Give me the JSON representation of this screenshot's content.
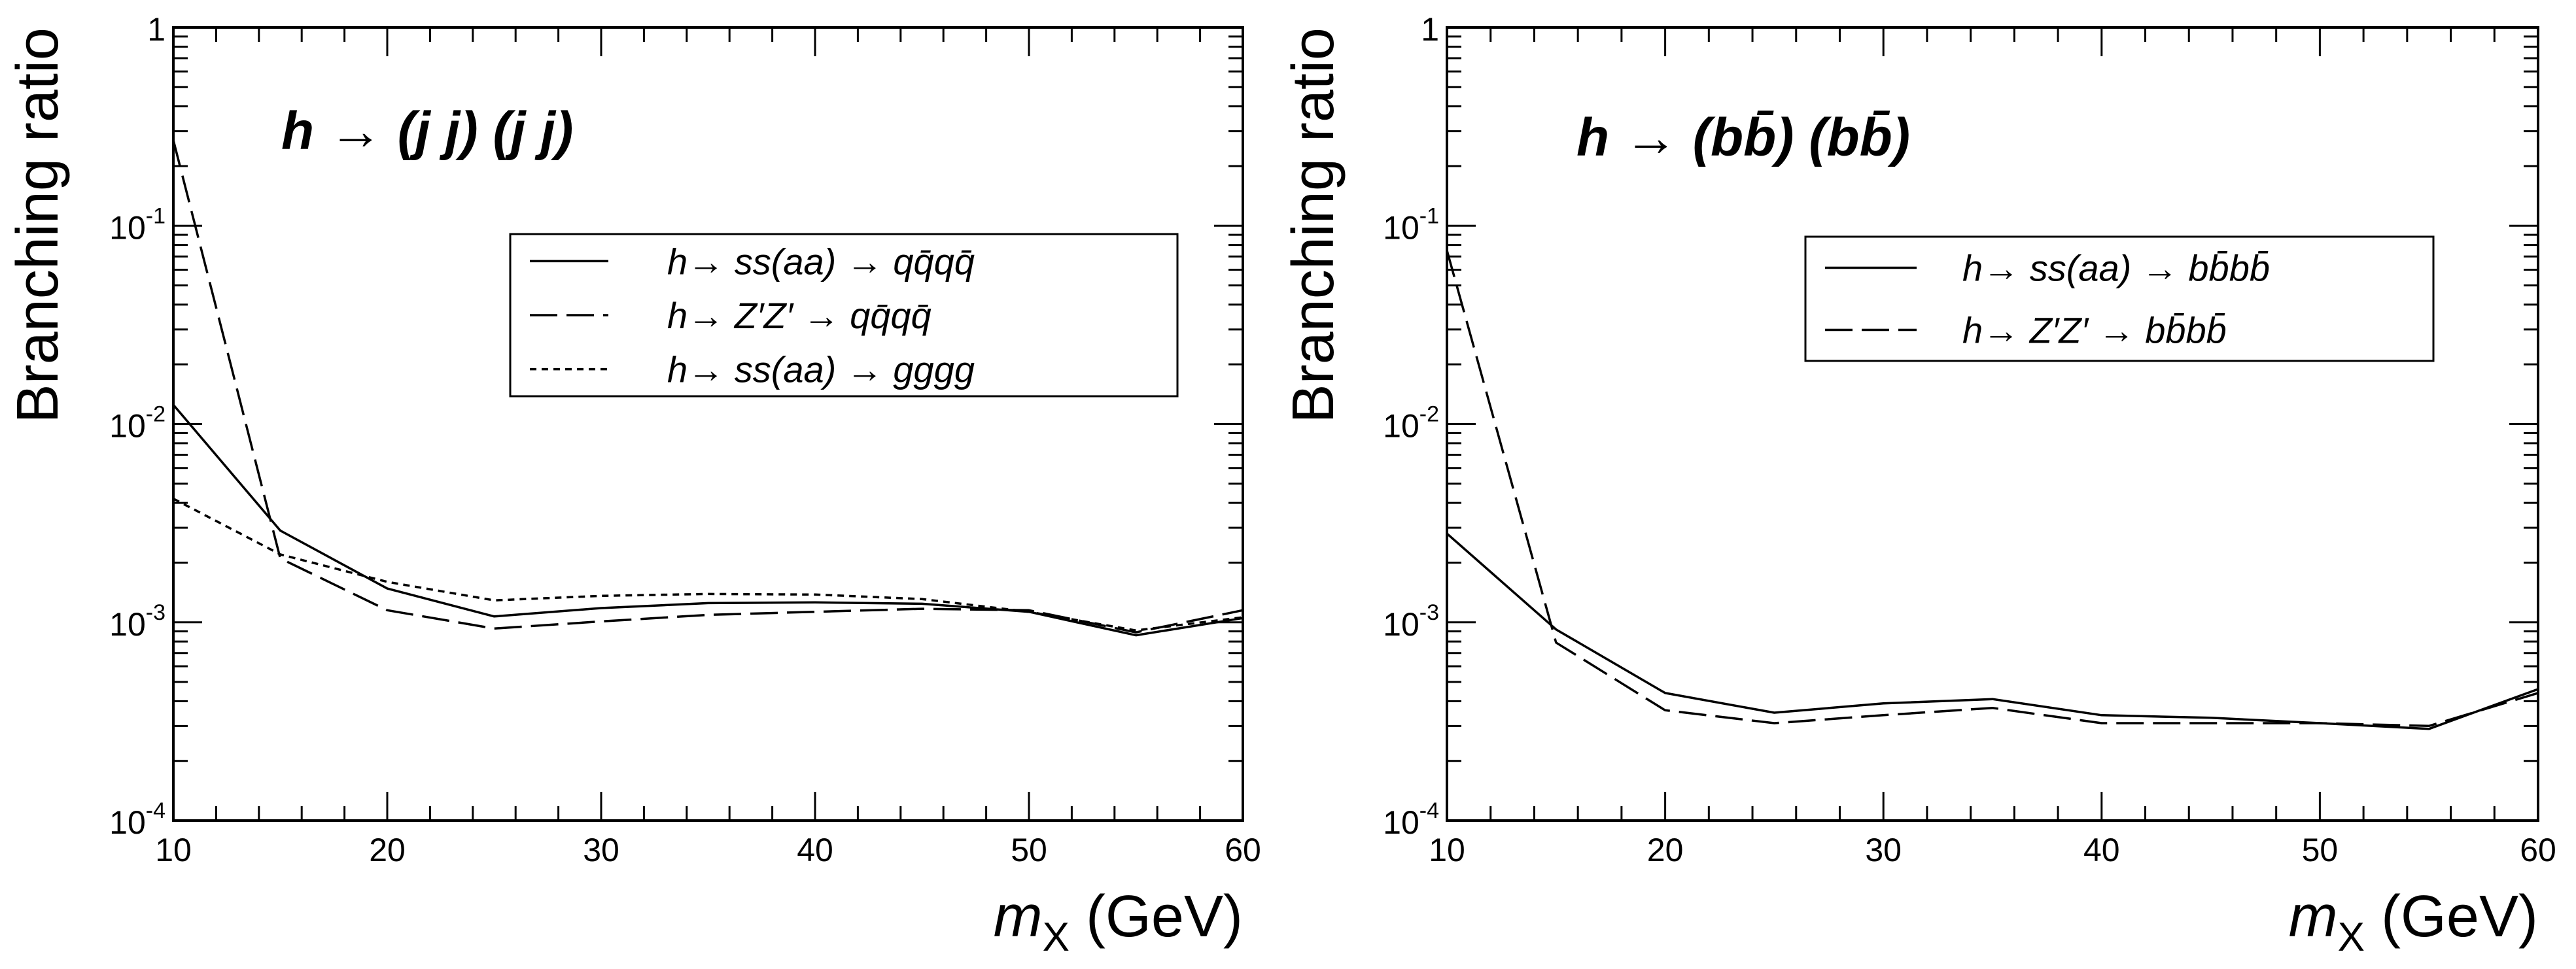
{
  "chart_data": [
    {
      "type": "line",
      "title_plain": "h → (j j) (j j)",
      "title": {
        "h": "h",
        "arrow": "→",
        "final_state": "(j j) (j j)"
      },
      "xlabel": {
        "var": "m",
        "sub": "X",
        "unit": "(GeV)"
      },
      "ylabel": "Branching ratio",
      "y_scale": "log",
      "xlim": [
        10,
        60
      ],
      "ylim": [
        0.0001,
        1
      ],
      "x_ticks": [
        "10",
        "20",
        "30",
        "40",
        "50",
        "60"
      ],
      "y_ticks": [
        {
          "base": "1",
          "exp": ""
        },
        {
          "base": "10",
          "exp": "-1"
        },
        {
          "base": "10",
          "exp": "-2"
        },
        {
          "base": "10",
          "exp": "-3"
        },
        {
          "base": "10",
          "exp": "-4"
        }
      ],
      "legend_position": "top-right",
      "series": [
        {
          "name": "h→ ss(aa) → qq̄qq̄",
          "label": {
            "lhs": "h→ ss(aa) →",
            "rhs": "qq̄qq̄"
          },
          "style": "solid",
          "x": [
            10,
            15,
            20,
            25,
            30,
            35,
            40,
            45,
            50,
            55,
            60
          ],
          "y": [
            0.0125,
            0.0029,
            0.00148,
            0.00107,
            0.00118,
            0.00125,
            0.00126,
            0.00124,
            0.00113,
            0.00086,
            0.00105
          ]
        },
        {
          "name": "h→ Z′Z′ → qq̄qq̄",
          "label": {
            "lhs": "h→ Z′Z′ →",
            "rhs": "qq̄qq̄"
          },
          "style": "dashed",
          "x": [
            10,
            15,
            20,
            25,
            30,
            35,
            40,
            45,
            50,
            55,
            60
          ],
          "y": [
            0.27,
            0.0021,
            0.00115,
            0.00093,
            0.00101,
            0.00109,
            0.00113,
            0.00117,
            0.00115,
            0.00089,
            0.00115
          ]
        },
        {
          "name": "h→ ss(aa) → gggg",
          "label": {
            "lhs": "h→ ss(aa) →",
            "rhs": "gggg"
          },
          "style": "dotted",
          "x": [
            10,
            15,
            20,
            25,
            30,
            35,
            40,
            45,
            50,
            55,
            60
          ],
          "y": [
            0.0042,
            0.0022,
            0.0016,
            0.00129,
            0.00136,
            0.00139,
            0.00138,
            0.00131,
            0.00113,
            0.00091,
            0.00106
          ]
        }
      ]
    },
    {
      "type": "line",
      "title_plain": "h → (bb̄) (bb̄)",
      "title": {
        "h": "h",
        "arrow": "→",
        "final_state": "(bb̄) (bb̄)"
      },
      "xlabel": {
        "var": "m",
        "sub": "X",
        "unit": "(GeV)"
      },
      "ylabel": "Branching ratio",
      "y_scale": "log",
      "xlim": [
        10,
        60
      ],
      "ylim": [
        0.0001,
        1
      ],
      "x_ticks": [
        "10",
        "20",
        "30",
        "40",
        "50",
        "60"
      ],
      "y_ticks": [
        {
          "base": "1",
          "exp": ""
        },
        {
          "base": "10",
          "exp": "-1"
        },
        {
          "base": "10",
          "exp": "-2"
        },
        {
          "base": "10",
          "exp": "-3"
        },
        {
          "base": "10",
          "exp": "-4"
        }
      ],
      "legend_position": "top-right",
      "series": [
        {
          "name": "h→ ss(aa) → bb̄bb̄",
          "label": {
            "lhs": "h→ ss(aa) →",
            "rhs": "bb̄bb̄"
          },
          "style": "solid",
          "x": [
            10,
            15,
            20,
            25,
            30,
            35,
            40,
            45,
            50,
            55,
            60
          ],
          "y": [
            0.0028,
            0.00092,
            0.00044,
            0.00035,
            0.00039,
            0.00041,
            0.00034,
            0.00033,
            0.00031,
            0.00029,
            0.00046
          ]
        },
        {
          "name": "h→ Z′Z′ → bb̄bb̄",
          "label": {
            "lhs": "h→ Z′Z′ →",
            "rhs": "bb̄bb̄"
          },
          "style": "dashed",
          "x": [
            10,
            15,
            20,
            25,
            30,
            35,
            40,
            45,
            50,
            55,
            60
          ],
          "y": [
            0.075,
            0.00079,
            0.00036,
            0.00031,
            0.00034,
            0.00037,
            0.00031,
            0.00031,
            0.00031,
            0.0003,
            0.00044
          ]
        }
      ]
    }
  ]
}
